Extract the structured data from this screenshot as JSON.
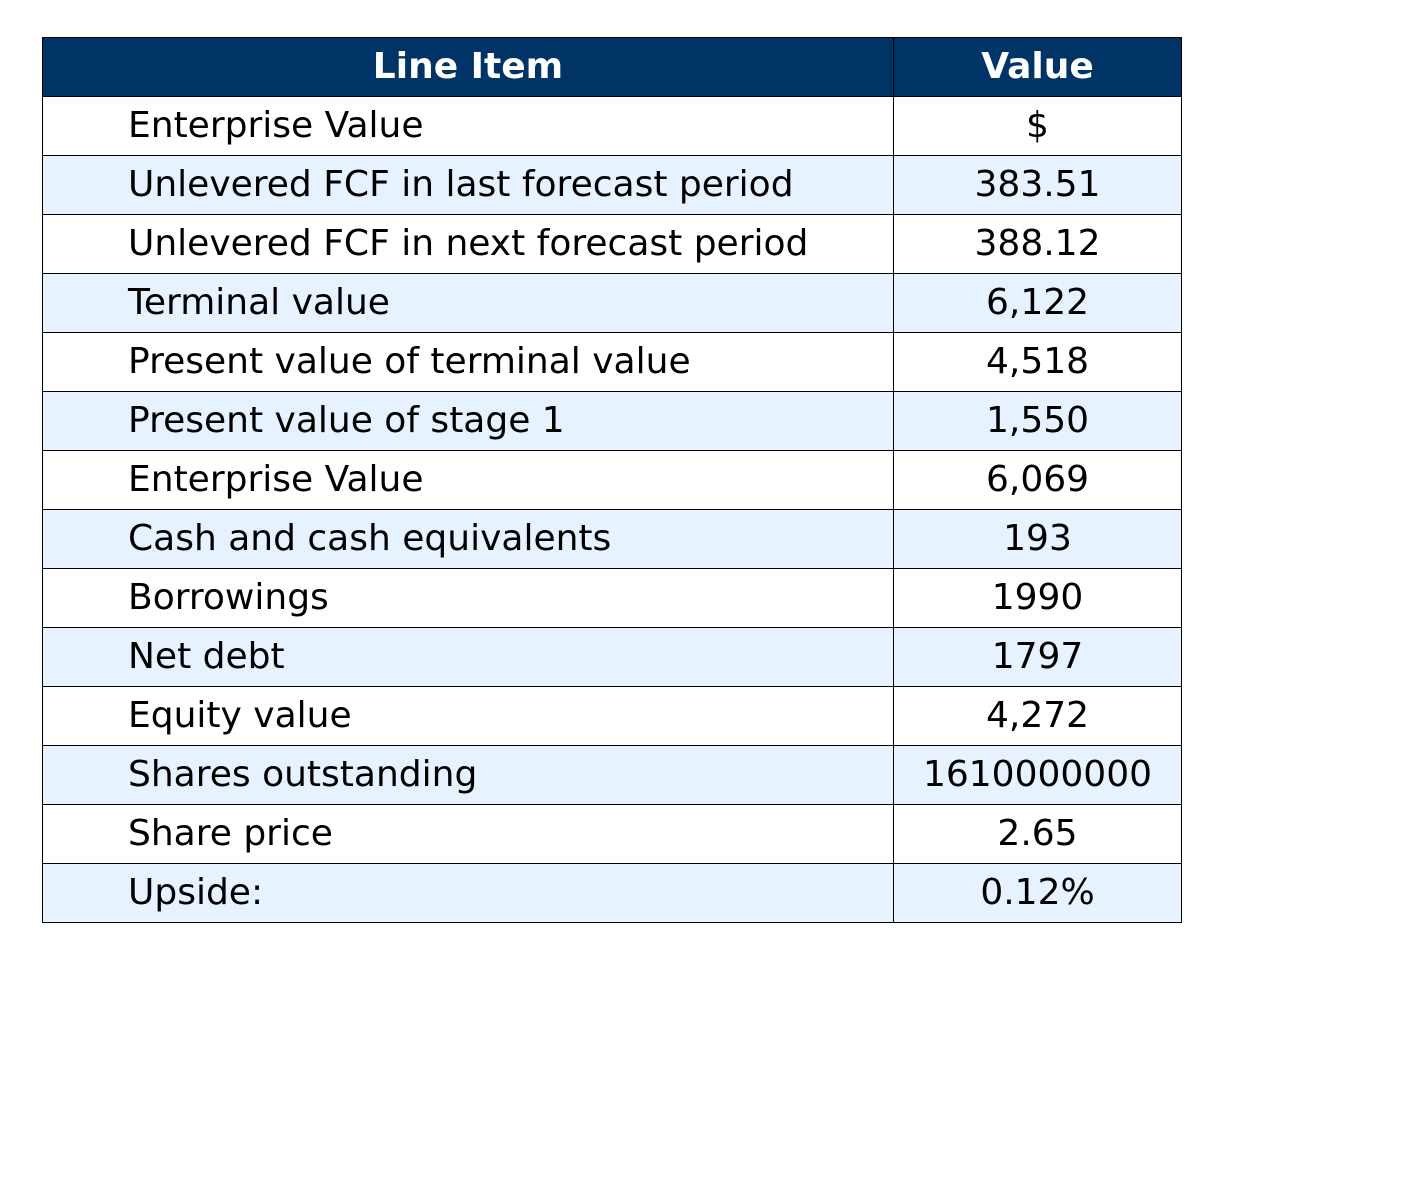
{
  "colors": {
    "header_bg": "#003366",
    "header_text": "#ffffff",
    "row_odd_bg": "#ffffff",
    "row_even_bg": "#e6f2ff",
    "border": "#000000"
  },
  "table": {
    "headers": [
      "Line Item",
      "Value"
    ],
    "rows": [
      [
        "Enterprise Value",
        "$"
      ],
      [
        "Unlevered FCF in last forecast period",
        "383.51"
      ],
      [
        "Unlevered FCF in next forecast period",
        "388.12"
      ],
      [
        "Terminal value",
        "6,122"
      ],
      [
        "Present value of terminal value",
        "4,518"
      ],
      [
        "Present value of stage 1",
        "1,550"
      ],
      [
        "Enterprise Value",
        "6,069"
      ],
      [
        "Cash and cash equivalents",
        "193"
      ],
      [
        "Borrowings",
        "1990"
      ],
      [
        "Net debt",
        "1797"
      ],
      [
        "Equity value",
        "4,272"
      ],
      [
        "Shares outstanding",
        "1610000000"
      ],
      [
        "Share price",
        "2.65"
      ],
      [
        "Upside:",
        "0.12%"
      ]
    ]
  }
}
